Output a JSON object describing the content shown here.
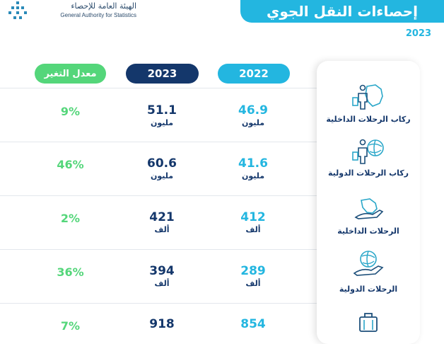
{
  "header": {
    "org_name_ar": "الهيئة العامة للإحصاء",
    "org_name_en": "General Authority for Statistics",
    "title": "إحصاءات النقل الجوي",
    "year": "2023"
  },
  "columns": {
    "y2022": "2022",
    "y2023": "2023",
    "change": "معدل التغير"
  },
  "rows": [
    {
      "label": "ركاب الرحلات الداخلية",
      "icon": "domestic-passenger-icon",
      "v2022": "46.9",
      "u2022": "مليون",
      "v2023": "51.1",
      "u2023": "مليون",
      "change": "9%"
    },
    {
      "label": "ركاب الرحلات الدولية",
      "icon": "international-passenger-icon",
      "v2022": "41.6",
      "u2022": "مليون",
      "v2023": "60.6",
      "u2023": "مليون",
      "change": "46%"
    },
    {
      "label": "الرحلات الداخلية",
      "icon": "domestic-flights-icon",
      "v2022": "412",
      "u2022": "ألف",
      "v2023": "421",
      "u2023": "ألف",
      "change": "2%"
    },
    {
      "label": "الرحلات الدولية",
      "icon": "international-flights-icon",
      "v2022": "289",
      "u2022": "ألف",
      "v2023": "394",
      "u2023": "ألف",
      "change": "36%"
    },
    {
      "label": "",
      "icon": "luggage-icon",
      "v2022": "854",
      "u2022": "",
      "v2023": "918",
      "u2023": "",
      "change": "7%"
    }
  ],
  "colors": {
    "cyan": "#23b6e0",
    "navy": "#14376b",
    "green": "#54d67a"
  }
}
